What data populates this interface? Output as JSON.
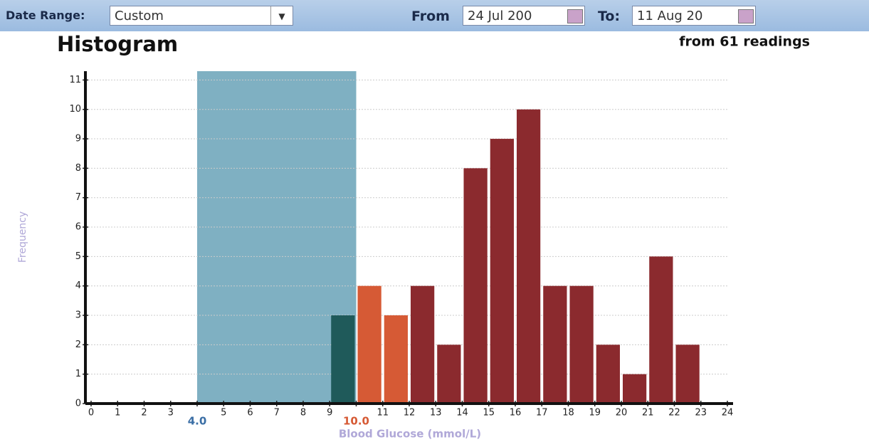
{
  "toolbar": {
    "date_range_label": "Date Range:",
    "date_range_value": "Custom",
    "from_label": "From",
    "from_value": "24 Jul 200",
    "to_label": "To:",
    "to_value": "11 Aug 20"
  },
  "chart_data": {
    "type": "histogram",
    "title": "Histogram",
    "subtitle": "from 61 readings",
    "x_label": "Blood Glucose (mmol/L)",
    "y_label": "Frequency",
    "bins": [
      0,
      1,
      2,
      3,
      4,
      5,
      6,
      7,
      8,
      9,
      10,
      11,
      12,
      13,
      14,
      15,
      16,
      17,
      18,
      19,
      20,
      21,
      22,
      23,
      24
    ],
    "counts": [
      0,
      0,
      0,
      0,
      0,
      0,
      0,
      0,
      0,
      3,
      4,
      3,
      4,
      2,
      8,
      9,
      10,
      4,
      4,
      2,
      1,
      5,
      2,
      0
    ],
    "colors": [
      "#8b2a2e",
      "#8b2a2e",
      "#8b2a2e",
      "#8b2a2e",
      "#1f5a5a",
      "#1f5a5a",
      "#1f5a5a",
      "#1f5a5a",
      "#1f5a5a",
      "#1f5a5a",
      "#d65a35",
      "#d65a35",
      "#8b2a2e",
      "#8b2a2e",
      "#8b2a2e",
      "#8b2a2e",
      "#8b2a2e",
      "#8b2a2e",
      "#8b2a2e",
      "#8b2a2e",
      "#8b2a2e",
      "#8b2a2e",
      "#8b2a2e",
      "#8b2a2e"
    ],
    "target_range": {
      "low": 4,
      "high": 10,
      "color": "#7fb0c2",
      "low_color": "#3a6ea5",
      "high_color": "#d65a35"
    },
    "xlim": [
      0,
      24
    ],
    "ylim": [
      0,
      11.3
    ],
    "xticks": [
      0,
      1,
      2,
      3,
      {
        "value": 4,
        "label": "4.0"
      },
      5,
      6,
      7,
      8,
      9,
      {
        "value": 10,
        "label": "10.0"
      },
      11,
      12,
      13,
      14,
      15,
      16,
      17,
      18,
      19,
      20,
      21,
      22,
      23,
      24
    ],
    "yticks": [
      0,
      1,
      2,
      3,
      4,
      5,
      6,
      7,
      8,
      9,
      10,
      11
    ],
    "grid": true
  }
}
